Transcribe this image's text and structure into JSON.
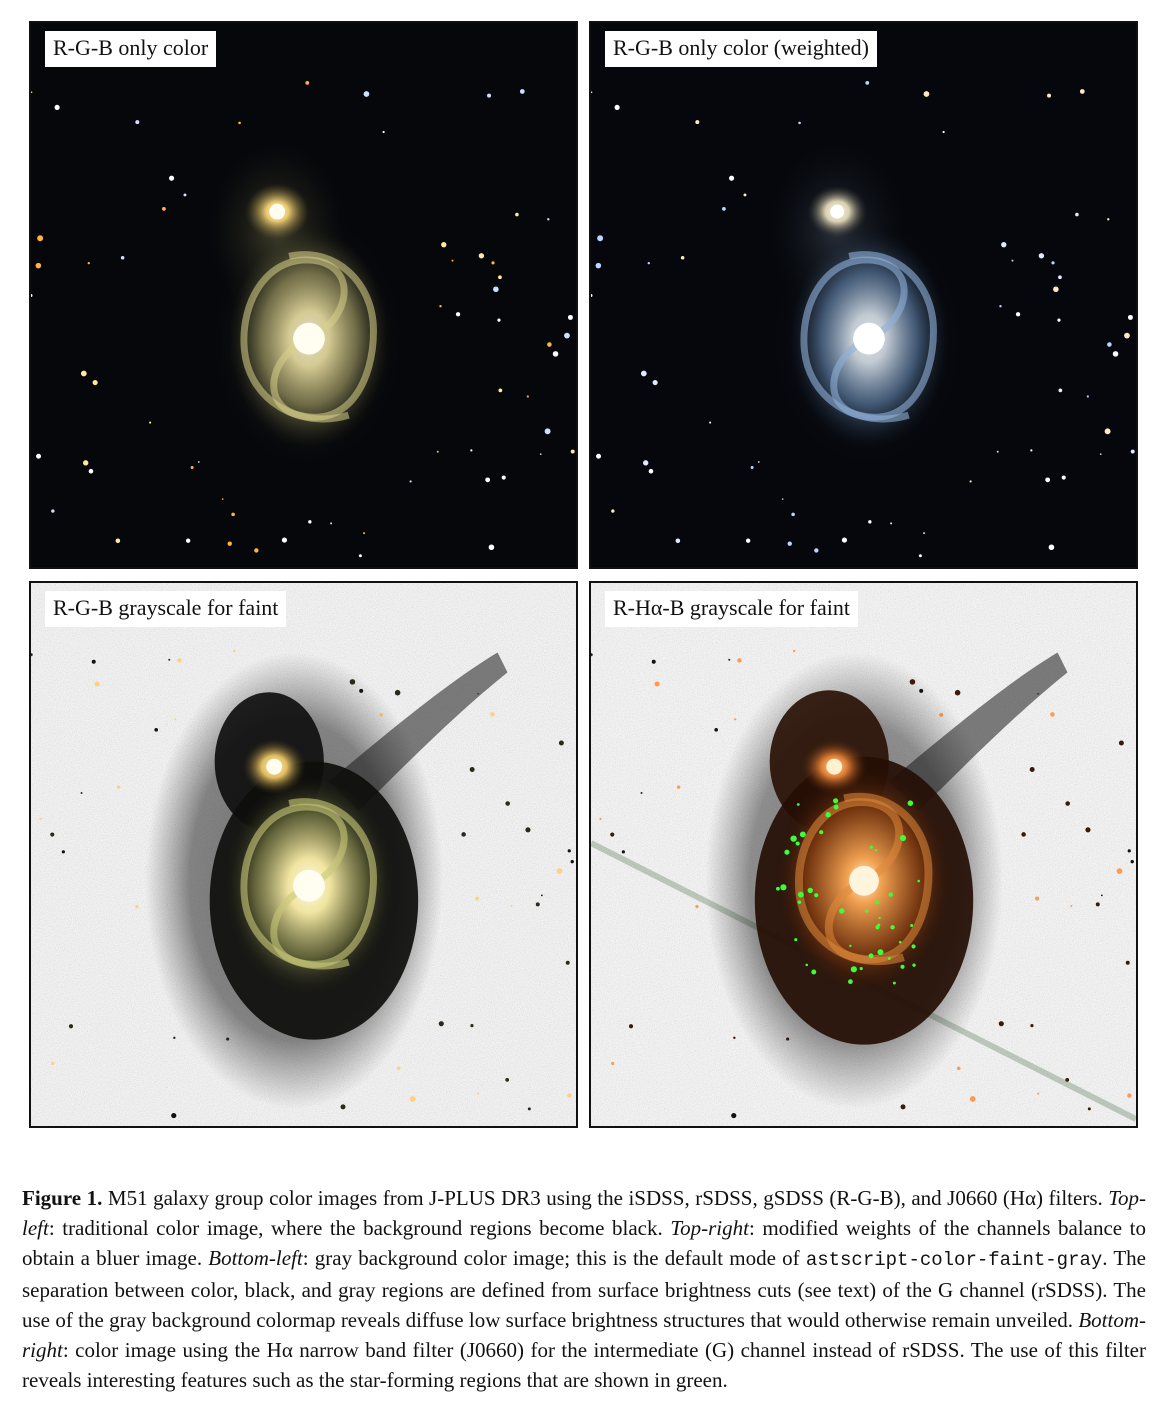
{
  "panels": {
    "top_left": {
      "label": "R-G-B only color"
    },
    "top_right": {
      "label": "R-G-B only color (weighted)"
    },
    "bottom_left": {
      "label": "R-G-B grayscale for faint"
    },
    "bottom_right": {
      "label": "R-Hα-B grayscale for faint"
    }
  },
  "caption": {
    "label": "Figure 1.",
    "s1": "M51 galaxy group color images from J-PLUS DR3 using the iSDSS, rSDSS, gSDSS (R-G-B), and J0660 (Hα) filters.",
    "tl_tag": "Top-left",
    "tl_text": ": traditional color image, where the background regions become black.",
    "tr_tag": "Top-right",
    "tr_text": ": modified weights of the channels balance to obtain a bluer image.",
    "bl_tag": "Bottom-left",
    "bl_text": ": gray background color image; this is the default mode of",
    "program": "astscript-color-faint-gray",
    "s2": ". The separation between color, black, and gray regions are defined from surface brightness cuts (see text) of the G channel (rSDSS). The use of the gray background colormap reveals diffuse low surface brightness structures that would otherwise remain unveiled.",
    "br_tag": "Bottom-right",
    "br_text": ": color image using the Hα narrow band filter (J0660) for the intermediate (G) channel instead of rSDSS. The use of this filter reveals interesting features such as the star-forming regions that are shown in green."
  }
}
